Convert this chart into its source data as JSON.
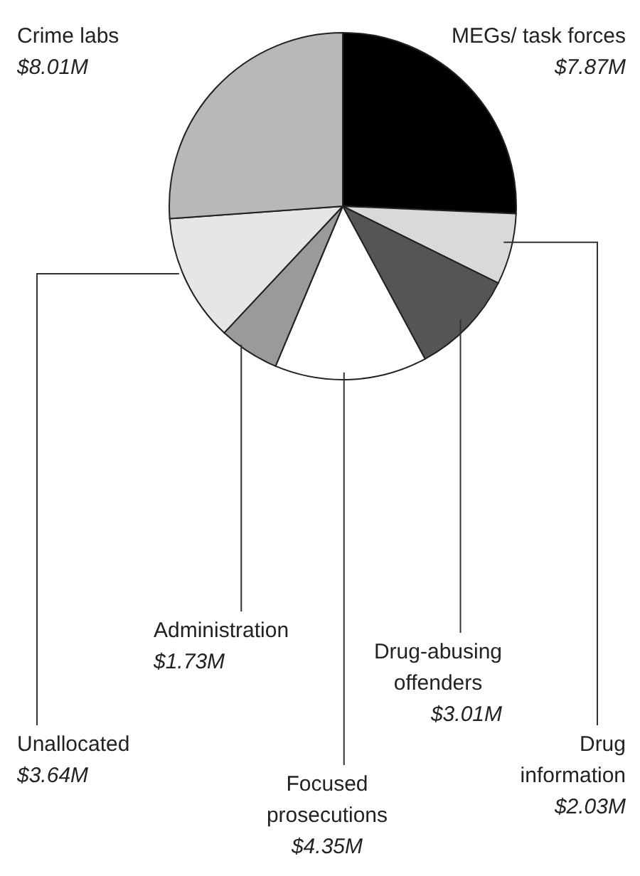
{
  "chart_data": {
    "type": "pie",
    "categories": [
      "MEGs/ task forces",
      "Drug information",
      "Drug-abusing offenders",
      "Focused prosecutions",
      "Administration",
      "Unallocated",
      "Crime labs"
    ],
    "values": [
      7.87,
      2.03,
      3.01,
      4.35,
      1.73,
      3.64,
      8.01
    ],
    "value_labels": [
      "$7.87M",
      "$2.03M",
      "$3.01M",
      "$4.35M",
      "$1.73M",
      "$3.64M",
      "$8.01M"
    ],
    "colors": [
      "#000000",
      "#d9d9d9",
      "#555555",
      "#ffffff",
      "#9a9a9a",
      "#e6e6e6",
      "#b8b8b8"
    ]
  }
}
